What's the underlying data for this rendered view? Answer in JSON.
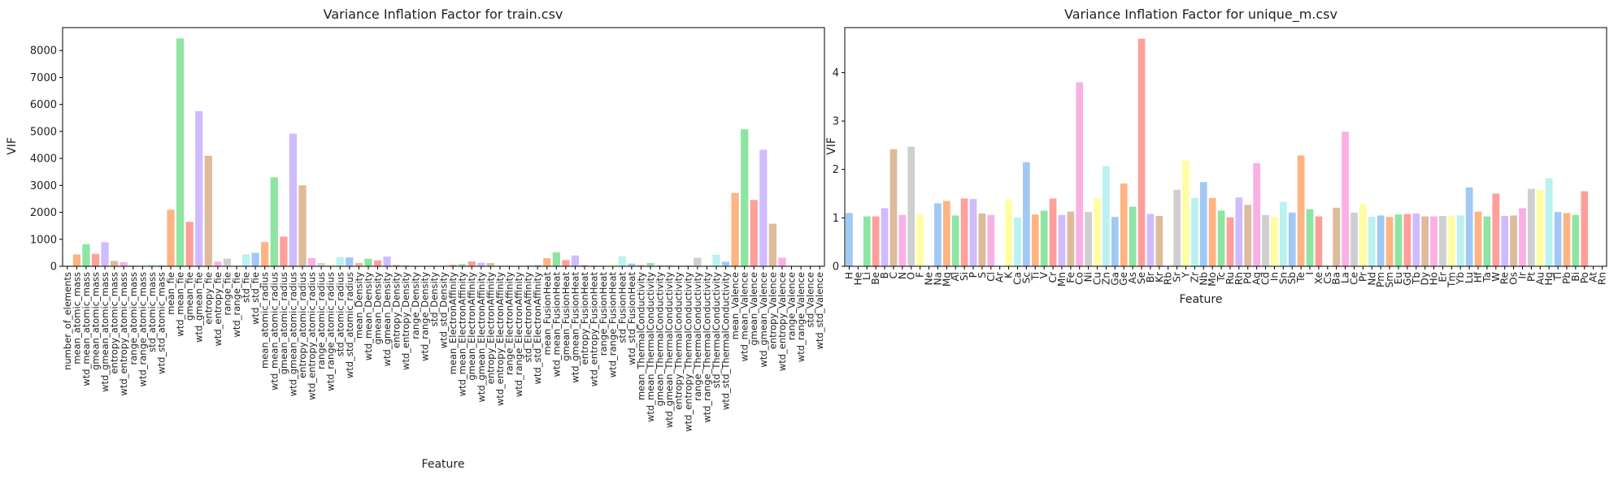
{
  "chart_data": [
    {
      "type": "bar",
      "title": "Variance Inflation Factor for train.csv",
      "xlabel": "Feature",
      "ylabel": "VIF",
      "ylim": [
        0,
        8850
      ],
      "yticks": [
        0,
        1000,
        2000,
        3000,
        4000,
        5000,
        6000,
        7000,
        8000
      ],
      "grid": false,
      "palette": "pastel",
      "colors": [
        "#a1c9f4",
        "#ffb482",
        "#8de5a1",
        "#ff9f9b",
        "#d0bbff",
        "#debb9b",
        "#fab0e4",
        "#cfcfcf",
        "#fffea3",
        "#b9f2f0"
      ],
      "categories": [
        "number_of_elements",
        "mean_atomic_mass",
        "wtd_mean_atomic_mass",
        "gmean_atomic_mass",
        "wtd_gmean_atomic_mass",
        "entropy_atomic_mass",
        "wtd_entropy_atomic_mass",
        "range_atomic_mass",
        "wtd_range_atomic_mass",
        "std_atomic_mass",
        "wtd_std_atomic_mass",
        "mean_fie",
        "wtd_mean_fie",
        "gmean_fie",
        "wtd_gmean_fie",
        "entropy_fie",
        "wtd_entropy_fie",
        "range_fie",
        "wtd_range_fie",
        "std_fie",
        "wtd_std_fie",
        "mean_atomic_radius",
        "wtd_mean_atomic_radius",
        "gmean_atomic_radius",
        "wtd_gmean_atomic_radius",
        "entropy_atomic_radius",
        "wtd_entropy_atomic_radius",
        "range_atomic_radius",
        "wtd_range_atomic_radius",
        "std_atomic_radius",
        "wtd_std_atomic_radius",
        "mean_Density",
        "wtd_mean_Density",
        "gmean_Density",
        "wtd_gmean_Density",
        "entropy_Density",
        "wtd_entropy_Density",
        "range_Density",
        "wtd_range_Density",
        "std_Density",
        "wtd_std_Density",
        "mean_ElectronAffinity",
        "wtd_mean_ElectronAffinity",
        "gmean_ElectronAffinity",
        "wtd_gmean_ElectronAffinity",
        "entropy_ElectronAffinity",
        "wtd_entropy_ElectronAffinity",
        "range_ElectronAffinity",
        "wtd_range_ElectronAffinity",
        "std_ElectronAffinity",
        "wtd_std_ElectronAffinity",
        "mean_FusionHeat",
        "wtd_mean_FusionHeat",
        "gmean_FusionHeat",
        "wtd_gmean_FusionHeat",
        "entropy_FusionHeat",
        "wtd_entropy_FusionHeat",
        "range_FusionHeat",
        "wtd_range_FusionHeat",
        "std_FusionHeat",
        "wtd_std_FusionHeat",
        "mean_ThermalConductivity",
        "wtd_mean_ThermalConductivity",
        "gmean_ThermalConductivity",
        "wtd_gmean_ThermalConductivity",
        "entropy_ThermalConductivity",
        "wtd_entropy_ThermalConductivity",
        "range_ThermalConductivity",
        "wtd_range_ThermalConductivity",
        "std_ThermalConductivity",
        "wtd_std_ThermalConductivity",
        "mean_Valence",
        "wtd_mean_Valence",
        "gmean_Valence",
        "wtd_gmean_Valence",
        "entropy_Valence",
        "wtd_entropy_Valence",
        "range_Valence",
        "wtd_range_Valence",
        "std_Valence",
        "wtd_std_Valence"
      ],
      "values": [
        20,
        440,
        820,
        460,
        890,
        200,
        150,
        30,
        40,
        60,
        30,
        2100,
        8450,
        1650,
        5750,
        4100,
        170,
        280,
        30,
        440,
        500,
        900,
        3300,
        1100,
        4920,
        3000,
        300,
        120,
        60,
        340,
        330,
        120,
        280,
        220,
        360,
        50,
        40,
        20,
        30,
        30,
        20,
        60,
        80,
        180,
        130,
        120,
        20,
        20,
        30,
        40,
        50,
        300,
        520,
        230,
        400,
        50,
        30,
        20,
        60,
        370,
        100,
        50,
        120,
        30,
        40,
        20,
        30,
        320,
        30,
        430,
        170,
        2720,
        5080,
        2460,
        4320,
        1580,
        320,
        20,
        20,
        20,
        20
      ]
    },
    {
      "type": "bar",
      "title": "Variance Inflation Factor for unique_m.csv",
      "xlabel": "Feature",
      "ylabel": "VIF",
      "ylim": [
        0,
        4.93
      ],
      "yticks": [
        0,
        1,
        2,
        3,
        4
      ],
      "grid": false,
      "palette": "pastel",
      "colors": [
        "#a1c9f4",
        "#ffb482",
        "#8de5a1",
        "#ff9f9b",
        "#d0bbff",
        "#debb9b",
        "#fab0e4",
        "#cfcfcf",
        "#fffea3",
        "#b9f2f0"
      ],
      "categories": [
        "H",
        "He",
        "Li",
        "Be",
        "B",
        "C",
        "N",
        "O",
        "F",
        "Ne",
        "Na",
        "Mg",
        "Al",
        "Si",
        "P",
        "S",
        "Cl",
        "Ar",
        "K",
        "Ca",
        "Sc",
        "Ti",
        "V",
        "Cr",
        "Mn",
        "Fe",
        "Co",
        "Ni",
        "Cu",
        "Zn",
        "Ga",
        "Ge",
        "As",
        "Se",
        "Br",
        "Kr",
        "Rb",
        "Sr",
        "Y",
        "Zr",
        "Nb",
        "Mo",
        "Tc",
        "Ru",
        "Rh",
        "Pd",
        "Ag",
        "Cd",
        "In",
        "Sn",
        "Sb",
        "Te",
        "I",
        "Xe",
        "Cs",
        "Ba",
        "La",
        "Ce",
        "Pr",
        "Nd",
        "Pm",
        "Sm",
        "Eu",
        "Gd",
        "Tb",
        "Dy",
        "Ho",
        "Er",
        "Tm",
        "Yb",
        "Lu",
        "Hf",
        "Ta",
        "W",
        "Re",
        "Os",
        "Ir",
        "Pt",
        "Au",
        "Hg",
        "Tl",
        "Pb",
        "Bi",
        "Po",
        "At",
        "Rn"
      ],
      "values": [
        1.1,
        0,
        1.03,
        1.03,
        1.2,
        2.42,
        1.06,
        2.47,
        1.07,
        0,
        1.3,
        1.35,
        1.05,
        1.4,
        1.39,
        1.09,
        1.06,
        0,
        1.38,
        1.01,
        2.15,
        1.07,
        1.15,
        1.4,
        1.06,
        1.13,
        3.8,
        1.12,
        1.41,
        2.07,
        1.02,
        1.71,
        1.23,
        4.7,
        1.08,
        1.04,
        0,
        1.58,
        2.18,
        1.41,
        1.74,
        1.41,
        1.15,
        1.01,
        1.42,
        1.27,
        2.13,
        1.06,
        1.02,
        1.33,
        1.11,
        2.29,
        1.18,
        1.03,
        0,
        1.21,
        2.78,
        1.11,
        1.28,
        1.02,
        1.05,
        1.02,
        1.07,
        1.08,
        1.09,
        1.03,
        1.03,
        1.04,
        1.05,
        1.05,
        1.63,
        1.13,
        1.03,
        1.5,
        1.04,
        1.05,
        1.2,
        1.6,
        1.58,
        1.82,
        1.12,
        1.1,
        1.06,
        1.55,
        0,
        0
      ]
    }
  ]
}
